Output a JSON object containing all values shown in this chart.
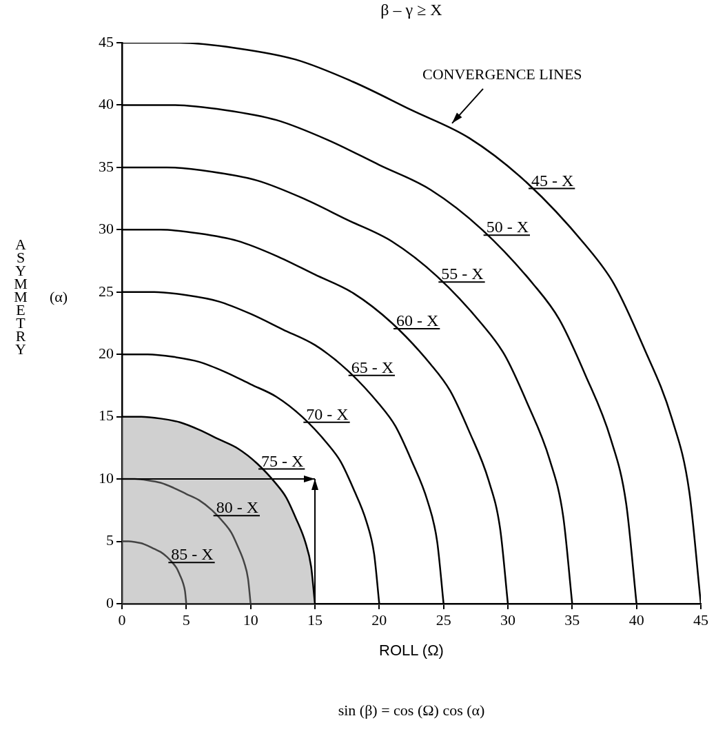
{
  "chart_data": {
    "type": "line",
    "title": "β – γ ≥ X",
    "xlabel": "ROLL (Ω)",
    "ylabel": "ASYMMETRY (α)",
    "xlim": [
      0,
      45
    ],
    "ylim": [
      0,
      45
    ],
    "xticks": [
      0,
      5,
      10,
      15,
      20,
      25,
      30,
      35,
      40,
      45
    ],
    "yticks": [
      0,
      5,
      10,
      15,
      20,
      25,
      30,
      35,
      40,
      45
    ],
    "grid": false,
    "legend": false,
    "marker": "none",
    "line_style": "solid",
    "series": [
      {
        "name": "85 - X",
        "color": "#000000",
        "x": [
          0,
          0.5,
          1,
          1.5,
          2,
          2.5,
          3,
          3.5,
          4,
          4.25,
          4.5,
          4.75,
          4.9,
          5
        ],
        "values": [
          5,
          5,
          4.95,
          4.85,
          4.65,
          4.4,
          4.15,
          3.75,
          3.2,
          2.85,
          2.3,
          1.65,
          1,
          0
        ]
      },
      {
        "name": "80 - X",
        "color": "#000000",
        "x": [
          0,
          1,
          2,
          3,
          4,
          5,
          6,
          7,
          8,
          8.5,
          9,
          9.5,
          9.8,
          10
        ],
        "values": [
          10,
          10,
          9.9,
          9.7,
          9.3,
          8.8,
          8.3,
          7.5,
          6.4,
          5.7,
          4.6,
          3.3,
          2,
          0
        ]
      },
      {
        "name": "75 - X",
        "type": "area",
        "color": "#000000",
        "x": [
          0,
          1.5,
          3,
          4.5,
          6,
          7.5,
          9,
          10.5,
          12,
          12.75,
          13.5,
          14.25,
          14.7,
          15
        ],
        "values": [
          15,
          15,
          14.85,
          14.55,
          13.95,
          13.2,
          12.45,
          11.25,
          9.6,
          8.55,
          6.9,
          4.95,
          3,
          0
        ]
      },
      {
        "name": "70 - X",
        "color": "#000000",
        "x": [
          0,
          2,
          4,
          6,
          8,
          10,
          12,
          14,
          16,
          17,
          18,
          19,
          19.6,
          20
        ],
        "values": [
          20,
          20,
          19.8,
          19.4,
          18.6,
          17.6,
          16.6,
          15,
          12.8,
          11.4,
          9.2,
          6.6,
          4,
          0
        ]
      },
      {
        "name": "65 - X",
        "color": "#000000",
        "x": [
          0,
          2.5,
          5,
          7.5,
          10,
          12.5,
          15,
          17.5,
          20,
          21.25,
          22.5,
          23.75,
          24.5,
          25
        ],
        "values": [
          25,
          25,
          24.75,
          24.25,
          23.25,
          22,
          20.75,
          18.75,
          16,
          14.25,
          11.5,
          8.25,
          5,
          0
        ]
      },
      {
        "name": "60 - X",
        "color": "#000000",
        "x": [
          0,
          3,
          6,
          9,
          12,
          15,
          18,
          21,
          24,
          25.5,
          27,
          28.5,
          29.4,
          30
        ],
        "values": [
          30,
          30,
          29.7,
          29.1,
          27.9,
          26.4,
          24.9,
          22.5,
          19.2,
          17.1,
          13.8,
          9.9,
          6,
          0
        ]
      },
      {
        "name": "55 - X",
        "color": "#000000",
        "x": [
          0,
          3.5,
          7,
          10.5,
          14,
          17.5,
          21,
          24.5,
          28,
          29.75,
          31.5,
          33.25,
          34.3,
          35
        ],
        "values": [
          35,
          35,
          34.65,
          33.95,
          32.55,
          30.8,
          29.05,
          26.25,
          22.4,
          19.95,
          16.1,
          11.55,
          7,
          0
        ]
      },
      {
        "name": "50 - X",
        "color": "#000000",
        "x": [
          0,
          4,
          8,
          12,
          16,
          20,
          24,
          28,
          32,
          34,
          36,
          38,
          39.2,
          40
        ],
        "values": [
          40,
          40,
          39.6,
          38.8,
          37.2,
          35.2,
          33.2,
          30,
          25.6,
          22.8,
          18.4,
          13.2,
          8,
          0
        ]
      },
      {
        "name": "45 - X",
        "color": "#000000",
        "x": [
          0,
          4.5,
          9,
          13.5,
          18,
          22.5,
          27,
          31.5,
          36,
          38.25,
          40.5,
          42.75,
          44.1,
          45
        ],
        "values": [
          45,
          45,
          44.55,
          43.65,
          41.85,
          39.6,
          37.35,
          33.75,
          28.8,
          25.65,
          20.7,
          14.85,
          9,
          0
        ]
      }
    ],
    "annotations": [
      "CONVERGENCE LINES",
      "sin (β) = cos (Ω) cos (α)"
    ]
  }
}
